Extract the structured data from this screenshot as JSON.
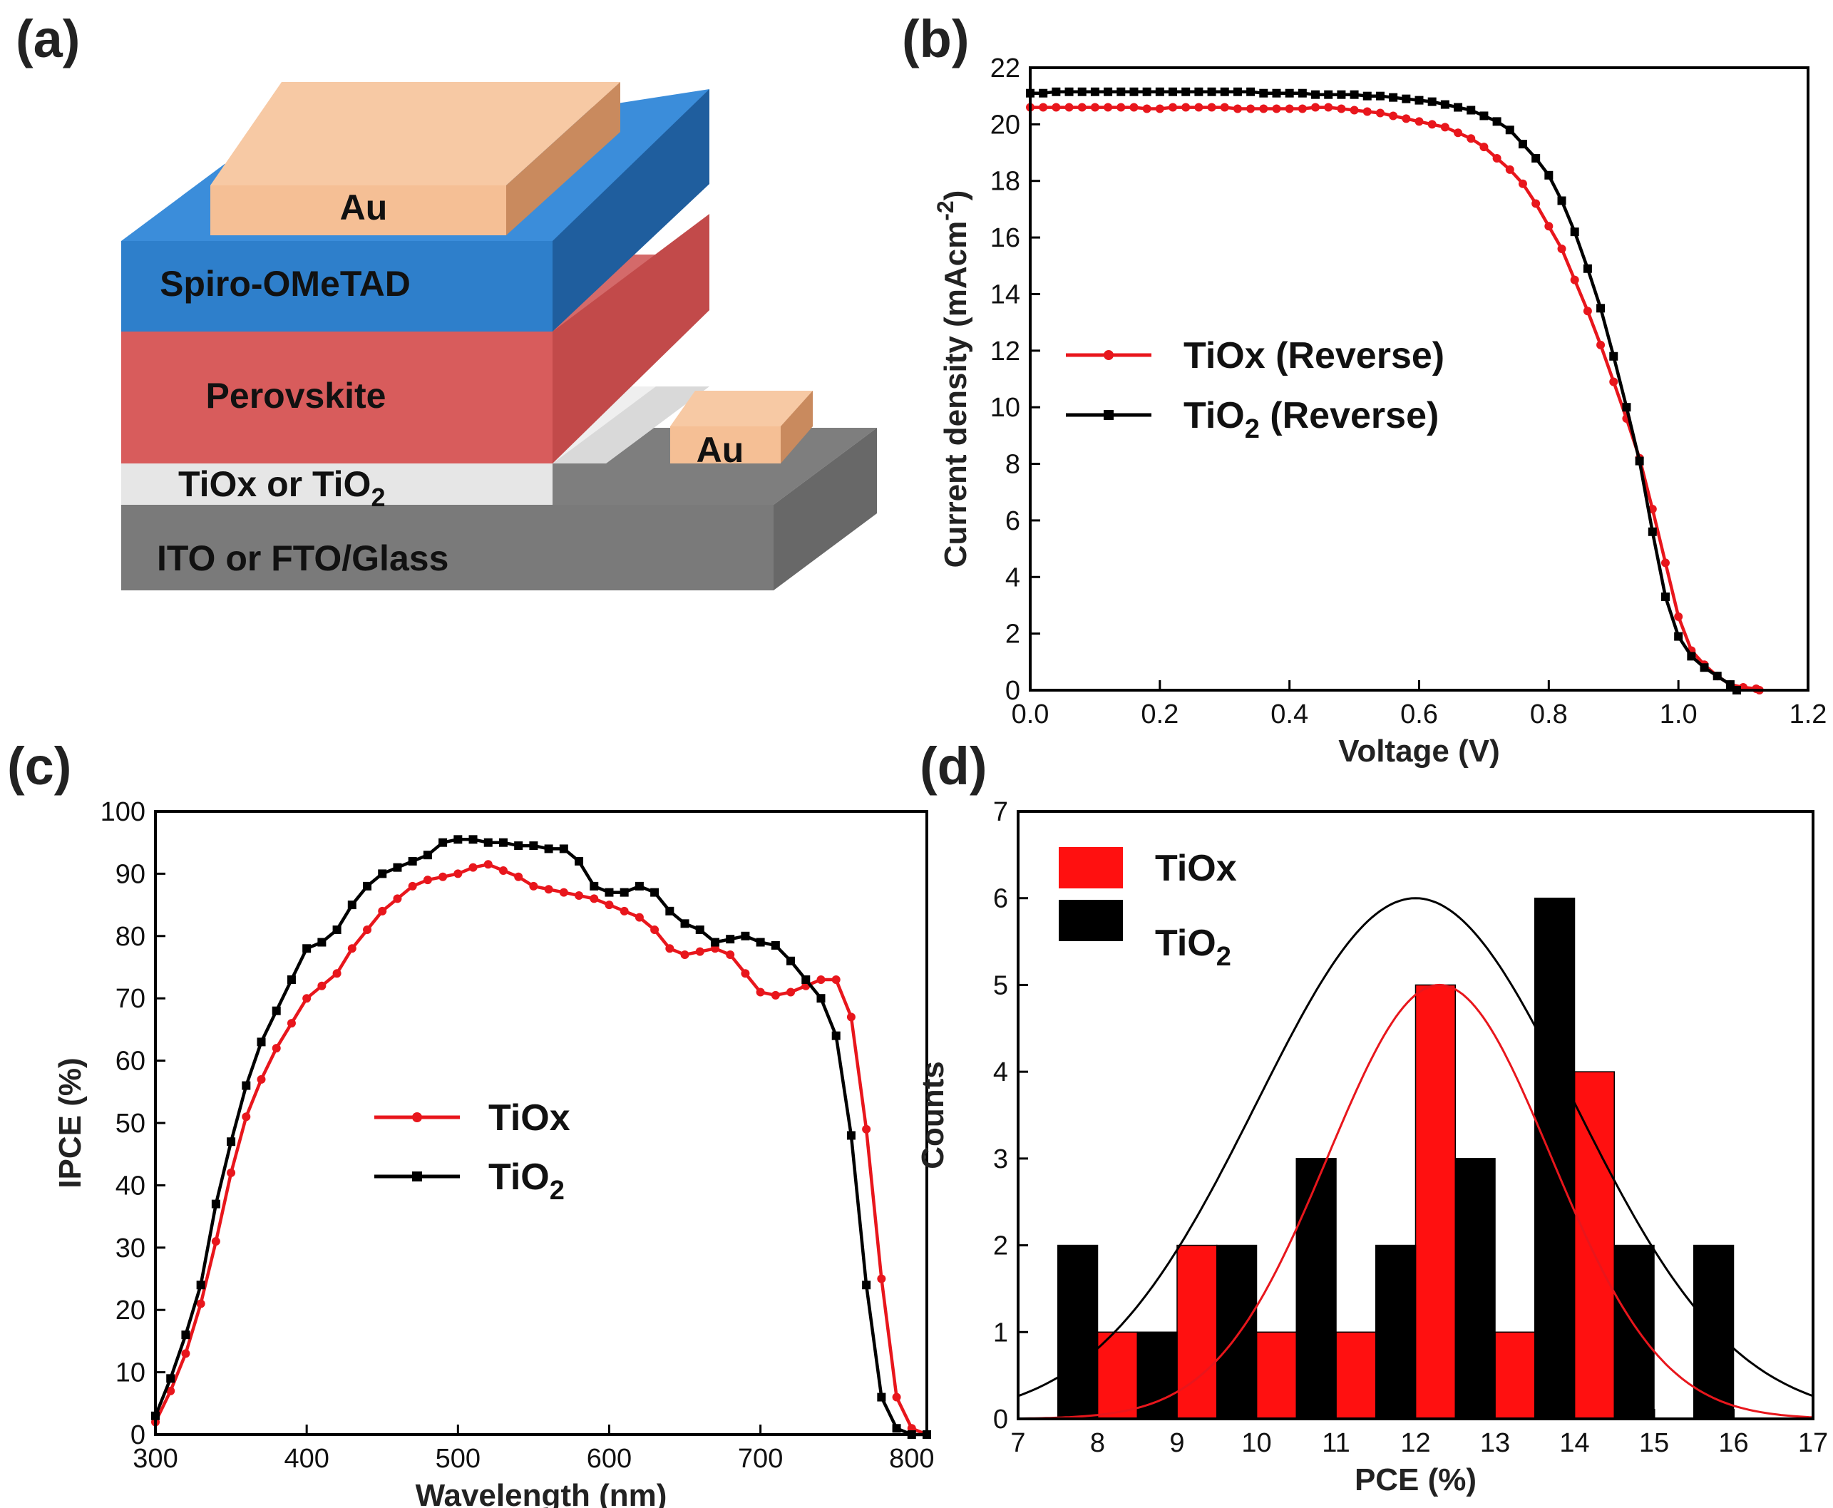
{
  "panels": {
    "a": {
      "label": "(a)",
      "layers": {
        "au_top": "Au",
        "spiro": "Spiro-OMeTAD",
        "perovskite": "Perovskite",
        "etl_prefix": "TiOx or TiO",
        "etl_sub": "2",
        "substrate": "ITO or FTO/Glass",
        "au_side": "Au"
      },
      "colors": {
        "au": "#F5BF95",
        "spiro": "#2E7FCB",
        "perovskite": "#D85C5C",
        "etl": "#E8E8E8",
        "substrate": "#8C8C8C"
      }
    },
    "b": {
      "label": "(b)"
    },
    "c": {
      "label": "(c)"
    },
    "d": {
      "label": "(d)"
    }
  },
  "chart_data": [
    {
      "panel": "b",
      "type": "line",
      "title": "",
      "xlabel": "Voltage (V)",
      "ylabel_prefix": "Current density (mAcm",
      "ylabel_sup": "-2",
      "ylabel_suffix": ")",
      "xlim": [
        0,
        1.2
      ],
      "ylim": [
        0,
        22
      ],
      "xticks": [
        "0.0",
        "0.2",
        "0.4",
        "0.6",
        "0.8",
        "1.0",
        "1.2"
      ],
      "yticks": [
        "0",
        "2",
        "4",
        "6",
        "8",
        "10",
        "12",
        "14",
        "16",
        "18",
        "20",
        "22"
      ],
      "legend": {
        "placement": "center-left",
        "entries": [
          {
            "label": "TiOx (Reverse)",
            "sub": ""
          },
          {
            "label_prefix": "TiO",
            "sub": "2",
            "label_suffix": " (Reverse)"
          }
        ]
      },
      "series": [
        {
          "name": "TiOx (Reverse)",
          "color": "#E8161C",
          "marker": "circle",
          "x": [
            0,
            0.02,
            0.04,
            0.06,
            0.08,
            0.1,
            0.12,
            0.14,
            0.16,
            0.18,
            0.2,
            0.22,
            0.24,
            0.26,
            0.28,
            0.3,
            0.32,
            0.34,
            0.36,
            0.38,
            0.4,
            0.42,
            0.44,
            0.46,
            0.48,
            0.5,
            0.52,
            0.54,
            0.56,
            0.58,
            0.6,
            0.62,
            0.64,
            0.66,
            0.68,
            0.7,
            0.72,
            0.74,
            0.76,
            0.78,
            0.8,
            0.82,
            0.84,
            0.86,
            0.88,
            0.9,
            0.92,
            0.94,
            0.96,
            0.98,
            1.0,
            1.02,
            1.04,
            1.06,
            1.08,
            1.1,
            1.12,
            1.125
          ],
          "y": [
            20.6,
            20.6,
            20.6,
            20.6,
            20.6,
            20.6,
            20.6,
            20.6,
            20.6,
            20.55,
            20.55,
            20.6,
            20.6,
            20.6,
            20.6,
            20.6,
            20.55,
            20.55,
            20.55,
            20.55,
            20.55,
            20.55,
            20.6,
            20.6,
            20.55,
            20.5,
            20.45,
            20.4,
            20.3,
            20.2,
            20.1,
            20.0,
            19.9,
            19.7,
            19.5,
            19.2,
            18.8,
            18.4,
            17.9,
            17.2,
            16.4,
            15.6,
            14.5,
            13.4,
            12.2,
            10.9,
            9.6,
            8.2,
            6.4,
            4.5,
            2.6,
            1.4,
            0.9,
            0.5,
            0.2,
            0.1,
            0.05,
            0.0
          ]
        },
        {
          "name": "TiO2 (Reverse)",
          "color": "#000000",
          "marker": "square",
          "x": [
            0,
            0.02,
            0.04,
            0.06,
            0.08,
            0.1,
            0.12,
            0.14,
            0.16,
            0.18,
            0.2,
            0.22,
            0.24,
            0.26,
            0.28,
            0.3,
            0.32,
            0.34,
            0.36,
            0.38,
            0.4,
            0.42,
            0.44,
            0.46,
            0.48,
            0.5,
            0.52,
            0.54,
            0.56,
            0.58,
            0.6,
            0.62,
            0.64,
            0.66,
            0.68,
            0.7,
            0.72,
            0.74,
            0.76,
            0.78,
            0.8,
            0.82,
            0.84,
            0.86,
            0.88,
            0.9,
            0.92,
            0.94,
            0.96,
            0.98,
            1.0,
            1.02,
            1.04,
            1.06,
            1.08,
            1.09
          ],
          "y": [
            21.1,
            21.1,
            21.15,
            21.15,
            21.15,
            21.15,
            21.15,
            21.15,
            21.15,
            21.15,
            21.15,
            21.15,
            21.15,
            21.15,
            21.15,
            21.15,
            21.15,
            21.15,
            21.1,
            21.1,
            21.1,
            21.1,
            21.05,
            21.05,
            21.05,
            21.05,
            21.0,
            21.0,
            20.95,
            20.9,
            20.85,
            20.8,
            20.7,
            20.6,
            20.5,
            20.3,
            20.1,
            19.8,
            19.3,
            18.8,
            18.2,
            17.3,
            16.2,
            14.9,
            13.5,
            11.8,
            10.0,
            8.1,
            5.6,
            3.3,
            1.9,
            1.2,
            0.8,
            0.5,
            0.2,
            0.0
          ]
        }
      ]
    },
    {
      "panel": "c",
      "type": "line",
      "title": "",
      "xlabel": "Wavelength (nm)",
      "ylabel": "IPCE (%)",
      "xlim": [
        300,
        810
      ],
      "ylim": [
        0,
        100
      ],
      "xticks": [
        "300",
        "400",
        "500",
        "600",
        "700",
        "800"
      ],
      "yticks": [
        "0",
        "10",
        "20",
        "30",
        "40",
        "50",
        "60",
        "70",
        "80",
        "90",
        "100"
      ],
      "legend": {
        "placement": "center",
        "entries": [
          {
            "label": "TiOx"
          },
          {
            "label_prefix": "TiO",
            "sub": "2"
          }
        ]
      },
      "series": [
        {
          "name": "TiOx",
          "color": "#E8161C",
          "marker": "circle",
          "x": [
            300,
            310,
            320,
            330,
            340,
            350,
            360,
            370,
            380,
            390,
            400,
            410,
            420,
            430,
            440,
            450,
            460,
            470,
            480,
            490,
            500,
            510,
            520,
            530,
            540,
            550,
            560,
            570,
            580,
            590,
            600,
            610,
            620,
            630,
            640,
            650,
            660,
            670,
            680,
            690,
            700,
            710,
            720,
            730,
            740,
            750,
            760,
            770,
            780,
            790,
            800,
            810
          ],
          "y": [
            2,
            7,
            13,
            21,
            31,
            42,
            51,
            57,
            62,
            66,
            70,
            72,
            74,
            78,
            81,
            84,
            86,
            88,
            89,
            89.5,
            90,
            91,
            91.5,
            90.5,
            89.5,
            88,
            87.5,
            87,
            86.5,
            86,
            85,
            84,
            83,
            81,
            78,
            77,
            77.5,
            78,
            77,
            74,
            71,
            70.5,
            71,
            72,
            73,
            73,
            67,
            49,
            25,
            6,
            1,
            0
          ]
        },
        {
          "name": "TiO2",
          "color": "#000000",
          "marker": "square",
          "x": [
            300,
            310,
            320,
            330,
            340,
            350,
            360,
            370,
            380,
            390,
            400,
            410,
            420,
            430,
            440,
            450,
            460,
            470,
            480,
            490,
            500,
            510,
            520,
            530,
            540,
            550,
            560,
            570,
            580,
            590,
            600,
            610,
            620,
            630,
            640,
            650,
            660,
            670,
            680,
            690,
            700,
            710,
            720,
            730,
            740,
            750,
            760,
            770,
            780,
            790,
            800,
            810
          ],
          "y": [
            3,
            9,
            16,
            24,
            37,
            47,
            56,
            63,
            68,
            73,
            78,
            79,
            81,
            85,
            88,
            90,
            91,
            92,
            93,
            95,
            95.5,
            95.5,
            95,
            95,
            94.5,
            94.5,
            94,
            94,
            92,
            88,
            87,
            87,
            88,
            87,
            84,
            82,
            81,
            79,
            79.5,
            80,
            79,
            78.5,
            76,
            73,
            70,
            64,
            48,
            24,
            6,
            1,
            0,
            0
          ]
        }
      ]
    },
    {
      "panel": "d",
      "type": "bar",
      "title": "",
      "xlabel": "PCE (%)",
      "ylabel": "Counts",
      "xlim": [
        7,
        17
      ],
      "ylim": [
        0,
        7
      ],
      "xticks": [
        "7",
        "8",
        "9",
        "10",
        "11",
        "12",
        "13",
        "14",
        "15",
        "16",
        "17"
      ],
      "yticks": [
        "0",
        "1",
        "2",
        "3",
        "4",
        "5",
        "6",
        "7"
      ],
      "bin_width": 0.5,
      "legend": {
        "placement": "top-left",
        "entries": [
          {
            "label": "TiOx"
          },
          {
            "label_prefix": "TiO",
            "sub": "2"
          }
        ]
      },
      "series": [
        {
          "name": "TiOx",
          "color": "#FF1010",
          "bin_starts": [
            8.0,
            9.0,
            10.0,
            11.0,
            12.0,
            13.0,
            14.0
          ],
          "values": [
            1,
            2,
            1,
            1,
            5,
            1,
            4
          ],
          "fit": {
            "mean": 12.3,
            "sigma": 1.4,
            "peak": 5
          }
        },
        {
          "name": "TiO2",
          "color": "#000000",
          "bin_starts": [
            7.5,
            8.5,
            9.5,
            10.5,
            11.5,
            12.5,
            13.5,
            14.5,
            15.5
          ],
          "values": [
            2,
            1,
            2,
            3,
            2,
            3,
            6,
            2,
            2
          ],
          "fit": {
            "mean": 12.0,
            "sigma": 2.0,
            "peak": 6
          }
        }
      ]
    }
  ]
}
